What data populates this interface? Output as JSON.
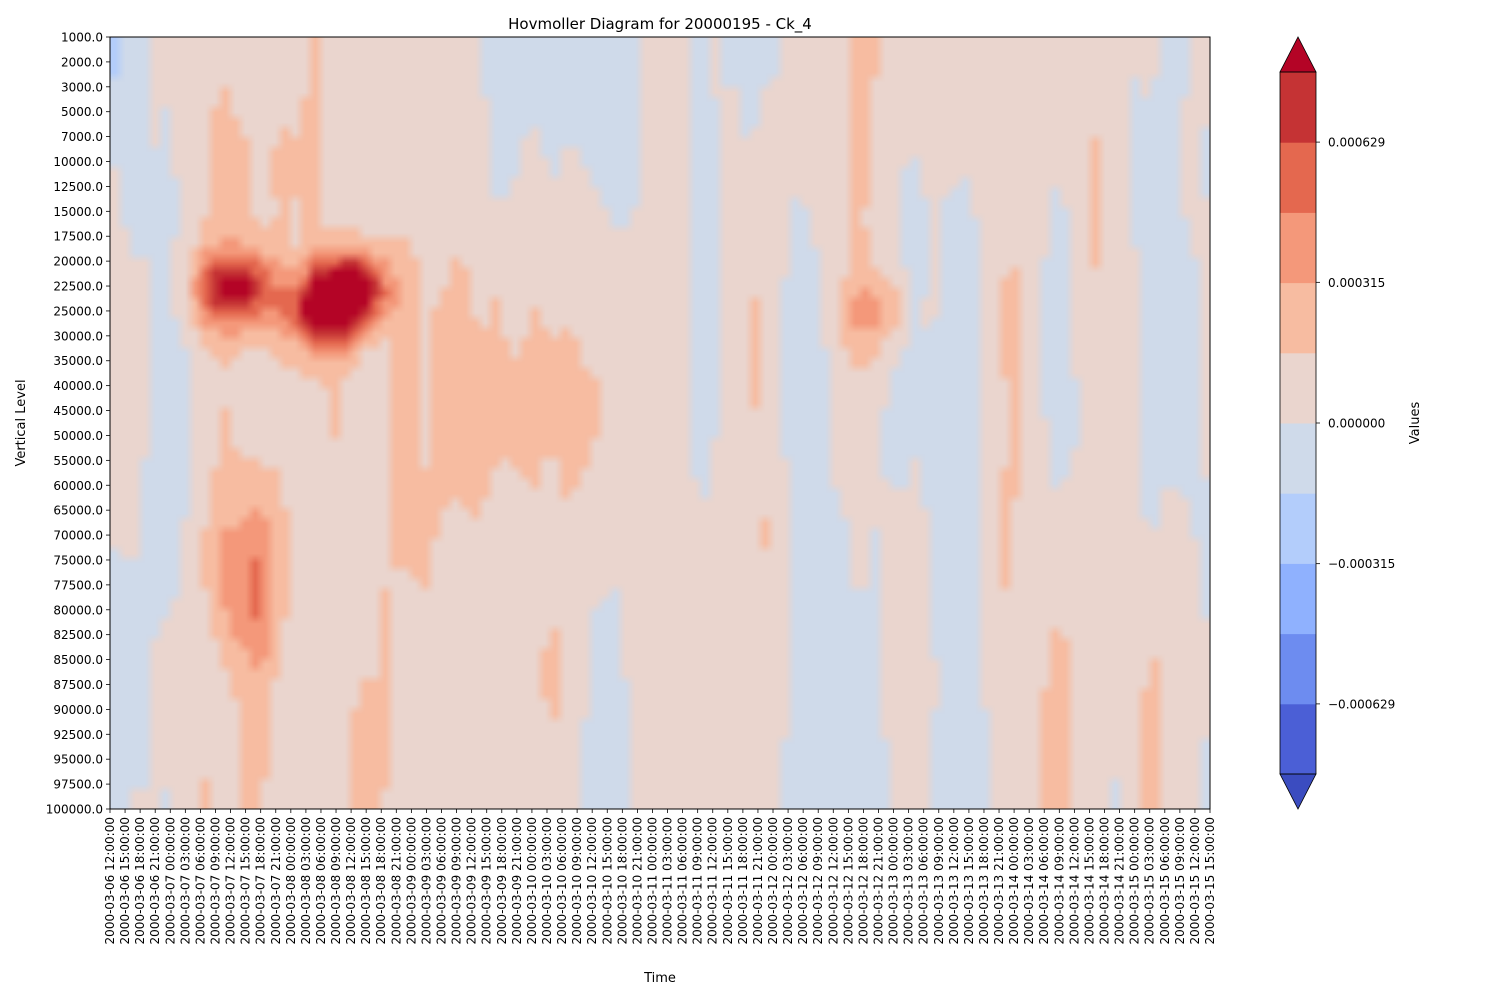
{
  "chart_data": {
    "type": "heatmap",
    "title": "Hovmoller Diagram for 20000195 - Ck_4",
    "xlabel": "Time",
    "ylabel": "Vertical Level",
    "colorbar_label": "Values",
    "y_levels": [
      "1000.0",
      "2000.0",
      "3000.0",
      "5000.0",
      "7000.0",
      "10000.0",
      "12500.0",
      "15000.0",
      "17500.0",
      "20000.0",
      "22500.0",
      "25000.0",
      "30000.0",
      "35000.0",
      "40000.0",
      "45000.0",
      "50000.0",
      "55000.0",
      "60000.0",
      "65000.0",
      "70000.0",
      "75000.0",
      "77500.0",
      "80000.0",
      "82500.0",
      "85000.0",
      "87500.0",
      "90000.0",
      "92500.0",
      "95000.0",
      "97500.0",
      "100000.0"
    ],
    "x_start": "2000-03-06 12:00:00",
    "x_end": "2000-03-15 15:00:00",
    "x_step_hours": 3,
    "colorbar_ticks": [
      "0.000629",
      "0.000315",
      "0.000000",
      "−0.000315",
      "−0.000629"
    ],
    "colorbar_levels": [
      -0.000786,
      -0.000629,
      -0.000472,
      -0.000315,
      -0.000157,
      0.0,
      0.000157,
      0.000315,
      0.000472,
      0.000629,
      0.000786
    ],
    "colors": {
      "extend_low": "#3b4cc0",
      "bands": [
        "#4b5fd6",
        "#6d8cf0",
        "#8fb1fe",
        "#b3cdfb",
        "#cfdaea",
        "#ead5ce",
        "#f7bca1",
        "#f4987a",
        "#e4684f",
        "#c53334"
      ],
      "extend_high": "#b40426"
    },
    "features": [
      {
        "t": "2000-03-07 12:00:00",
        "level": "22500.0",
        "value": 0.00075
      },
      {
        "t": "2000-03-08 06:00:00",
        "level": "25000.0",
        "value": 0.00072
      },
      {
        "t": "2000-03-08 12:00:00",
        "level": "22500.0",
        "value": 0.00075
      },
      {
        "t": "2000-03-07 15:00:00",
        "level": "77500.0",
        "value": 0.0004
      },
      {
        "t": "2000-03-12 21:00:00",
        "level": "25000.0",
        "value": 0.00025
      }
    ]
  }
}
